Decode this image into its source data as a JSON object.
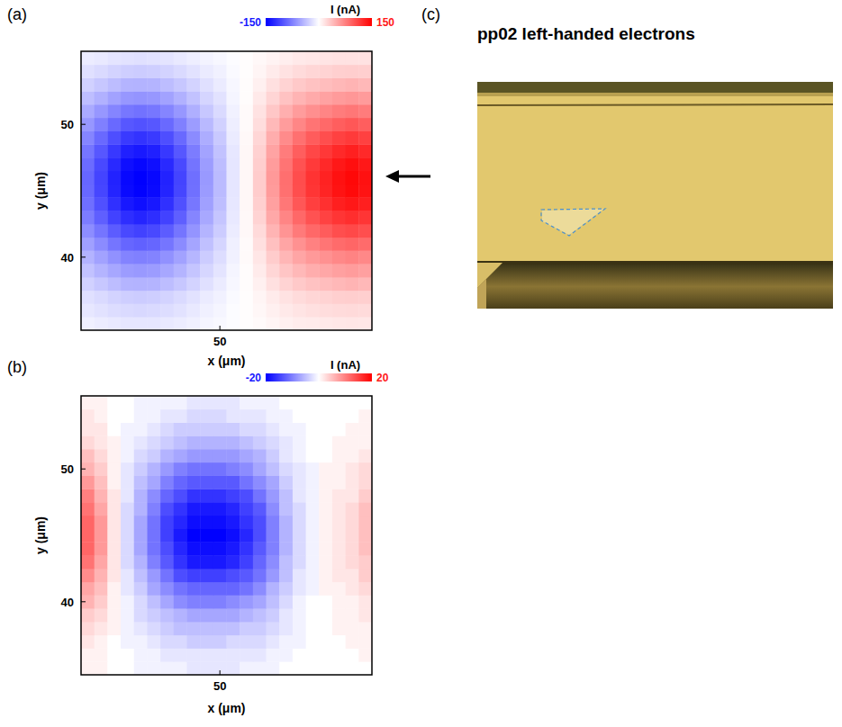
{
  "chart_data": [
    {
      "type": "heatmap",
      "panel_label": "(a)",
      "x_label": "x (μm)",
      "y_label": "y (μm)",
      "xlim": [
        39.5,
        61.5
      ],
      "ylim": [
        34.5,
        55.5
      ],
      "xticks": [
        50
      ],
      "yticks": [
        40,
        50
      ],
      "x": [
        40,
        41,
        42,
        43,
        44,
        45,
        46,
        47,
        48,
        49,
        50,
        51,
        52,
        53,
        54,
        55,
        56,
        57,
        58,
        59,
        60,
        61
      ],
      "y": [
        35,
        36,
        37,
        38,
        39,
        40,
        41,
        42,
        43,
        44,
        45,
        46,
        47,
        48,
        49,
        50,
        51,
        52,
        53,
        54,
        55
      ],
      "values": [
        [
          -9,
          -11,
          -13,
          -15,
          -15,
          -15,
          -13,
          -11,
          -9,
          -6,
          -4,
          -2,
          1,
          3,
          6,
          9,
          11,
          12,
          13,
          14,
          15,
          14
        ],
        [
          -14,
          -17,
          -20,
          -22,
          -23,
          -22,
          -20,
          -17,
          -13,
          -9,
          -6,
          -2,
          1,
          5,
          9,
          13,
          16,
          18,
          20,
          21,
          22,
          21
        ],
        [
          -18,
          -22,
          -26,
          -29,
          -30,
          -29,
          -26,
          -22,
          -17,
          -12,
          -8,
          -3,
          1,
          6,
          12,
          17,
          21,
          24,
          26,
          28,
          29,
          28
        ],
        [
          -27,
          -33,
          -39,
          -44,
          -45,
          -44,
          -39,
          -33,
          -26,
          -18,
          -12,
          -5,
          2,
          9,
          18,
          26,
          32,
          36,
          39,
          42,
          44,
          42
        ],
        [
          -36,
          -44,
          -52,
          -58,
          -60,
          -58,
          -52,
          -44,
          -34,
          -24,
          -16,
          -6,
          2,
          12,
          24,
          34,
          42,
          48,
          52,
          56,
          58,
          56
        ],
        [
          -45,
          -55,
          -65,
          -73,
          -75,
          -73,
          -65,
          -55,
          -43,
          -30,
          -20,
          -8,
          3,
          15,
          30,
          43,
          53,
          60,
          65,
          70,
          73,
          70
        ],
        [
          -56,
          -68,
          -81,
          -90,
          -93,
          -90,
          -81,
          -68,
          -53,
          -37,
          -25,
          -9,
          3,
          19,
          37,
          53,
          65,
          74,
          81,
          87,
          90,
          87
        ],
        [
          -67,
          -81,
          -96,
          -107,
          -111,
          -107,
          -96,
          -81,
          -63,
          -44,
          -30,
          -11,
          4,
          22,
          44,
          63,
          78,
          89,
          96,
          104,
          107,
          104
        ],
        [
          -77,
          -94,
          -111,
          -123,
          -128,
          -123,
          -111,
          -94,
          -72,
          -51,
          -34,
          -13,
          4,
          26,
          51,
          72,
          89,
          102,
          111,
          119,
          123,
          119
        ],
        [
          -85,
          -103,
          -122,
          -136,
          -141,
          -136,
          -122,
          -103,
          -80,
          -56,
          -38,
          -14,
          5,
          28,
          56,
          80,
          99,
          113,
          122,
          132,
          136,
          132
        ],
        [
          -89,
          -109,
          -129,
          -144,
          -149,
          -144,
          -129,
          -109,
          -84,
          -59,
          -40,
          -15,
          5,
          30,
          59,
          84,
          104,
          119,
          129,
          139,
          144,
          139
        ],
        [
          -90,
          -110,
          -130,
          -145,
          -150,
          -145,
          -130,
          -110,
          -85,
          -60,
          -40,
          -15,
          5,
          30,
          60,
          85,
          105,
          120,
          130,
          140,
          145,
          140
        ],
        [
          -87,
          -107,
          -126,
          -141,
          -146,
          -141,
          -126,
          -107,
          -82,
          -58,
          -39,
          -15,
          5,
          29,
          58,
          82,
          102,
          116,
          126,
          136,
          141,
          136
        ],
        [
          -81,
          -99,
          -117,
          -131,
          -135,
          -131,
          -117,
          -99,
          -77,
          -54,
          -36,
          -14,
          5,
          27,
          54,
          77,
          95,
          108,
          117,
          126,
          131,
          126
        ],
        [
          -72,
          -88,
          -104,
          -116,
          -120,
          -116,
          -104,
          -88,
          -68,
          -48,
          -32,
          -12,
          4,
          24,
          48,
          68,
          84,
          96,
          104,
          112,
          116,
          112
        ],
        [
          -61,
          -75,
          -88,
          -99,
          -102,
          -99,
          -88,
          -75,
          -58,
          -41,
          -27,
          -10,
          3,
          20,
          41,
          58,
          71,
          82,
          88,
          95,
          99,
          95
        ],
        [
          -50,
          -61,
          -72,
          -80,
          -83,
          -80,
          -72,
          -61,
          -47,
          -33,
          -22,
          -8,
          3,
          17,
          33,
          47,
          58,
          66,
          72,
          77,
          80,
          77
        ],
        [
          -38,
          -46,
          -55,
          -61,
          -63,
          -61,
          -55,
          -46,
          -36,
          -25,
          -17,
          -6,
          2,
          13,
          25,
          36,
          44,
          50,
          55,
          59,
          61,
          59
        ],
        [
          -27,
          -33,
          -39,
          -44,
          -45,
          -44,
          -39,
          -33,
          -26,
          -18,
          -12,
          -5,
          2,
          9,
          18,
          26,
          32,
          36,
          39,
          42,
          44,
          42
        ],
        [
          -18,
          -22,
          -26,
          -29,
          -30,
          -29,
          -26,
          -22,
          -17,
          -12,
          -8,
          -3,
          1,
          6,
          12,
          17,
          21,
          24,
          26,
          28,
          29,
          28
        ],
        [
          -11,
          -13,
          -16,
          -17,
          -18,
          -17,
          -16,
          -13,
          -10,
          -7,
          -5,
          -2,
          1,
          4,
          7,
          10,
          13,
          14,
          16,
          17,
          17,
          17
        ]
      ],
      "colorbar": {
        "label": "I (nA)",
        "range": [
          -150,
          150
        ],
        "ticks": [
          -150,
          150
        ]
      }
    },
    {
      "type": "heatmap",
      "panel_label": "(b)",
      "x_label": "x (μm)",
      "y_label": "y (μm)",
      "xlim": [
        39.5,
        61.5
      ],
      "ylim": [
        34.5,
        55.5
      ],
      "xticks": [
        50
      ],
      "yticks": [
        40,
        50
      ],
      "x": [
        40,
        41,
        42,
        43,
        44,
        45,
        46,
        47,
        48,
        49,
        50,
        51,
        52,
        53,
        54,
        55,
        56,
        57,
        58,
        59,
        60,
        61
      ],
      "y": [
        35,
        36,
        37,
        38,
        39,
        40,
        41,
        42,
        43,
        44,
        45,
        46,
        47,
        48,
        49,
        50,
        51,
        52,
        53,
        54,
        55
      ],
      "values": [
        [
          1,
          1,
          0,
          0,
          -1,
          -1,
          -1,
          -1,
          -2,
          -2,
          -2,
          -2,
          -1,
          -1,
          -1,
          0,
          0,
          0,
          0,
          0,
          0,
          0
        ],
        [
          1,
          1,
          0,
          0,
          -1,
          -1,
          -2,
          -2,
          -2,
          -2,
          -2,
          -2,
          -2,
          -2,
          -1,
          -1,
          0,
          0,
          0,
          0,
          0,
          1
        ],
        [
          2,
          1,
          0,
          -1,
          -1,
          -2,
          -3,
          -3,
          -4,
          -4,
          -4,
          -3,
          -3,
          -3,
          -2,
          -1,
          -1,
          0,
          0,
          0,
          1,
          1
        ],
        [
          3,
          2,
          1,
          -1,
          -2,
          -3,
          -4,
          -5,
          -5,
          -5,
          -5,
          -5,
          -4,
          -4,
          -3,
          -2,
          -1,
          0,
          0,
          1,
          1,
          1
        ],
        [
          4,
          3,
          1,
          -1,
          -3,
          -4,
          -5,
          -6,
          -7,
          -7,
          -7,
          -7,
          -6,
          -5,
          -4,
          -2,
          -1,
          0,
          0,
          1,
          1,
          2
        ],
        [
          6,
          4,
          1,
          -1,
          -3,
          -5,
          -7,
          -9,
          -10,
          -10,
          -10,
          -9,
          -8,
          -7,
          -5,
          -3,
          -1,
          0,
          0,
          1,
          1,
          2
        ],
        [
          7,
          5,
          1,
          -2,
          -4,
          -7,
          -9,
          -11,
          -12,
          -12,
          -12,
          -12,
          -11,
          -9,
          -6,
          -4,
          -2,
          -1,
          1,
          1,
          2,
          3
        ],
        [
          9,
          6,
          2,
          -2,
          -5,
          -8,
          -11,
          -14,
          -15,
          -15,
          -15,
          -14,
          -13,
          -11,
          -8,
          -5,
          -2,
          -1,
          1,
          2,
          2,
          4
        ],
        [
          11,
          7,
          2,
          -3,
          -6,
          -10,
          -13,
          -16,
          -18,
          -18,
          -18,
          -17,
          -15,
          -12,
          -9,
          -5,
          -3,
          -1,
          1,
          2,
          3,
          4
        ],
        [
          12,
          8,
          2,
          -3,
          -7,
          -11,
          -14,
          -17,
          -19,
          -19,
          -19,
          -18,
          -16,
          -13,
          -10,
          -6,
          -3,
          -1,
          1,
          2,
          3,
          5
        ],
        [
          12,
          8,
          2,
          -3,
          -7,
          -11,
          -15,
          -18,
          -20,
          -20,
          -20,
          -19,
          -17,
          -14,
          -10,
          -6,
          -3,
          -1,
          1,
          2,
          3,
          5
        ],
        [
          12,
          8,
          2,
          -3,
          -7,
          -11,
          -15,
          -17,
          -19,
          -19,
          -19,
          -18,
          -16,
          -14,
          -10,
          -6,
          -3,
          -1,
          1,
          2,
          3,
          5
        ],
        [
          11,
          7,
          2,
          -3,
          -6,
          -10,
          -14,
          -16,
          -18,
          -18,
          -18,
          -17,
          -15,
          -13,
          -9,
          -5,
          -3,
          -1,
          1,
          2,
          3,
          5
        ],
        [
          10,
          6,
          2,
          -2,
          -6,
          -9,
          -12,
          -14,
          -16,
          -16,
          -16,
          -15,
          -14,
          -11,
          -8,
          -5,
          -2,
          -1,
          1,
          2,
          2,
          4
        ],
        [
          8,
          5,
          1,
          -2,
          -5,
          -7,
          -10,
          -12,
          -13,
          -13,
          -13,
          -13,
          -11,
          -9,
          -7,
          -4,
          -2,
          -1,
          1,
          1,
          2,
          3
        ],
        [
          6,
          4,
          1,
          -2,
          -4,
          -6,
          -8,
          -10,
          -11,
          -11,
          -11,
          -10,
          -9,
          -7,
          -5,
          -3,
          -2,
          -1,
          1,
          1,
          2,
          3
        ],
        [
          5,
          3,
          1,
          -1,
          -3,
          -4,
          -6,
          -7,
          -8,
          -8,
          -8,
          -8,
          -7,
          -6,
          -4,
          -2,
          -1,
          0,
          0,
          1,
          1,
          2
        ],
        [
          3,
          2,
          1,
          -1,
          -2,
          -3,
          -4,
          -5,
          -6,
          -6,
          -6,
          -6,
          -5,
          -4,
          -3,
          -2,
          -1,
          0,
          0,
          1,
          1,
          1
        ],
        [
          2,
          2,
          0,
          -1,
          -1,
          -2,
          -3,
          -4,
          -4,
          -4,
          -4,
          -4,
          -3,
          -3,
          -2,
          -1,
          -1,
          0,
          0,
          0,
          1,
          1
        ],
        [
          2,
          1,
          0,
          0,
          -1,
          -1,
          -2,
          -2,
          -3,
          -3,
          -3,
          -2,
          -2,
          -2,
          -1,
          -1,
          0,
          0,
          0,
          0,
          0,
          1
        ],
        [
          1,
          1,
          0,
          0,
          -1,
          -1,
          -1,
          -1,
          -2,
          -2,
          -2,
          -2,
          -1,
          -1,
          -1,
          0,
          0,
          0,
          0,
          0,
          0,
          0
        ]
      ],
      "colorbar": {
        "label": "I (nA)",
        "range": [
          -20,
          20
        ],
        "ticks": [
          -20,
          20
        ]
      }
    }
  ],
  "photo": {
    "panel_label": "(c)",
    "title": "pp02 left-handed electrons"
  }
}
